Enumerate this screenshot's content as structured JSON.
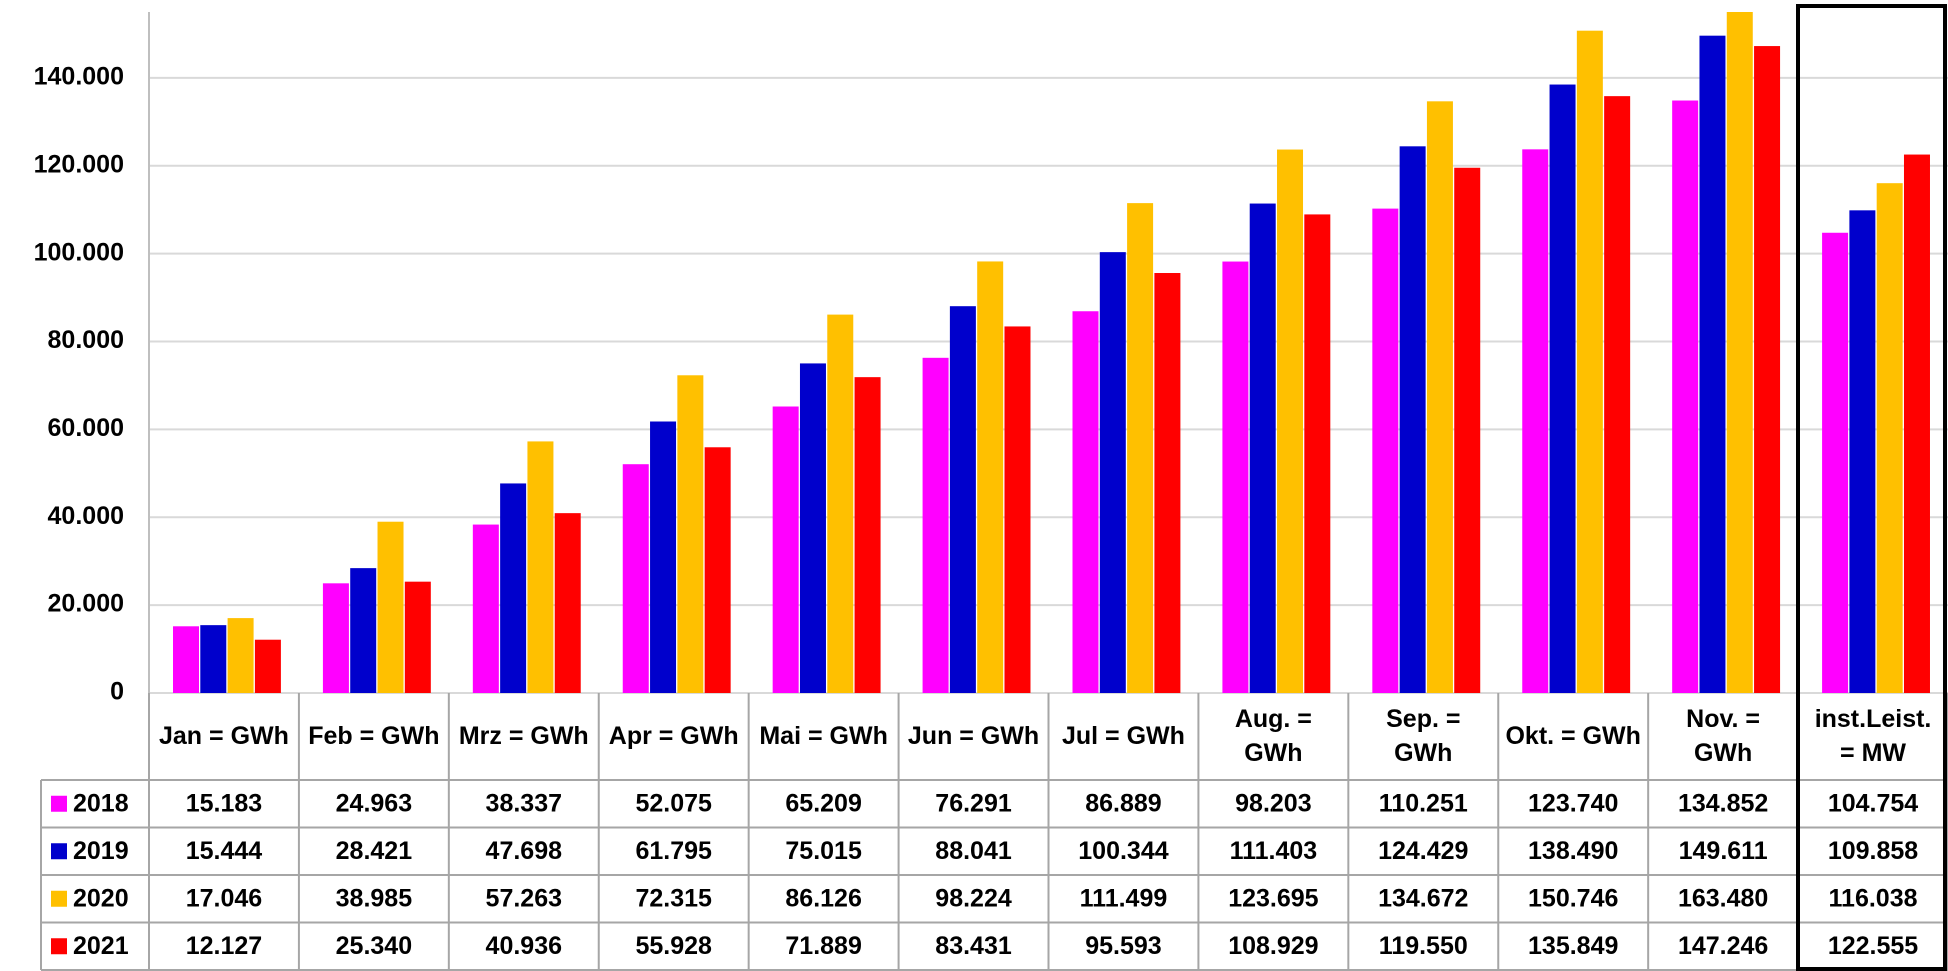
{
  "chart_data": {
    "type": "bar",
    "categories": [
      "Jan = GWh",
      "Feb = GWh",
      "Mrz = GWh",
      "Apr = GWh",
      "Mai = GWh",
      "Jun = GWh",
      "Jul = GWh",
      "Aug. = GWh",
      "Sep. = GWh",
      "Okt. = GWh",
      "Nov. = GWh",
      "inst.Leist. = MW"
    ],
    "series": [
      {
        "name": "2018",
        "color": "#ff00ff",
        "values": [
          15183,
          24963,
          38337,
          52075,
          65209,
          76291,
          86889,
          98203,
          110251,
          123740,
          134852,
          104754
        ],
        "value_labels": [
          "15.183",
          "24.963",
          "38.337",
          "52.075",
          "65.209",
          "76.291",
          "86.889",
          "98.203",
          "110.251",
          "123.740",
          "134.852",
          "104.754"
        ]
      },
      {
        "name": "2019",
        "color": "#0000cc",
        "values": [
          15444,
          28421,
          47698,
          61795,
          75015,
          88041,
          100344,
          111403,
          124429,
          138490,
          149611,
          109858
        ],
        "value_labels": [
          "15.444",
          "28.421",
          "47.698",
          "61.795",
          "75.015",
          "88.041",
          "100.344",
          "111.403",
          "124.429",
          "138.490",
          "149.611",
          "109.858"
        ]
      },
      {
        "name": "2020",
        "color": "#ffc000",
        "values": [
          17046,
          38985,
          57263,
          72315,
          86126,
          98224,
          111499,
          123695,
          134672,
          150746,
          163480,
          116038
        ],
        "value_labels": [
          "17.046",
          "38.985",
          "57.263",
          "72.315",
          "86.126",
          "98.224",
          "111.499",
          "123.695",
          "134.672",
          "150.746",
          "163.480",
          "116.038"
        ]
      },
      {
        "name": "2021",
        "color": "#ff0000",
        "values": [
          12127,
          25340,
          40936,
          55928,
          71889,
          83431,
          95593,
          108929,
          119550,
          135849,
          147246,
          122555
        ],
        "value_labels": [
          "12.127",
          "25.340",
          "40.936",
          "55.928",
          "71.889",
          "83.431",
          "95.593",
          "108.929",
          "119.550",
          "135.849",
          "147.246",
          "122.555"
        ]
      }
    ],
    "ylim": [
      0,
      155000
    ],
    "yticks": [
      0,
      {
        "value": 20000,
        "label": "20.000"
      },
      {
        "value": 40000,
        "label": "40.000"
      },
      {
        "value": 60000,
        "label": "60.000"
      },
      {
        "value": 80000,
        "label": "80.000"
      },
      {
        "value": 100000,
        "label": "100.000"
      },
      {
        "value": 120000,
        "label": "120.000"
      },
      {
        "value": 140000,
        "label": "140.000"
      }
    ],
    "grid": true
  }
}
